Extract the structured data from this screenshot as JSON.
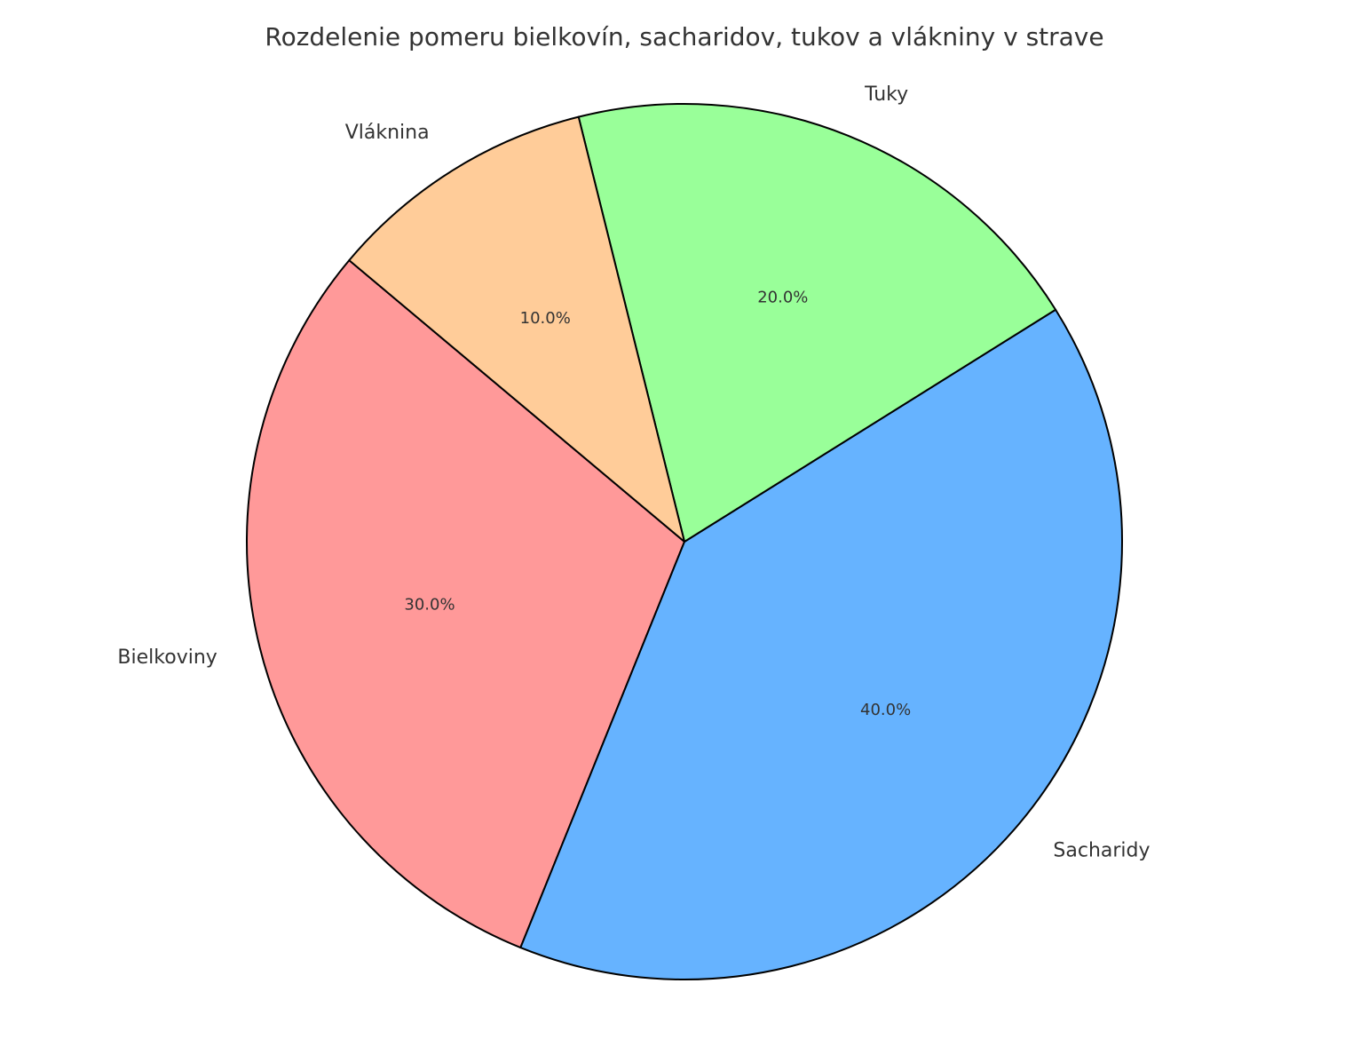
{
  "chart_data": {
    "type": "pie",
    "title": "Rozdelenie pomeru bielkovín, sacharidov, tukov a vlákniny v strave",
    "categories": [
      "Bielkoviny",
      "Sacharidy",
      "Tuky",
      "Vláknina"
    ],
    "values": [
      30,
      40,
      20,
      10
    ],
    "value_labels": [
      "30.0%",
      "40.0%",
      "20.0%",
      "10.0%"
    ],
    "colors": [
      "#ff9999",
      "#66b3ff",
      "#99ff99",
      "#ffcc99"
    ]
  }
}
